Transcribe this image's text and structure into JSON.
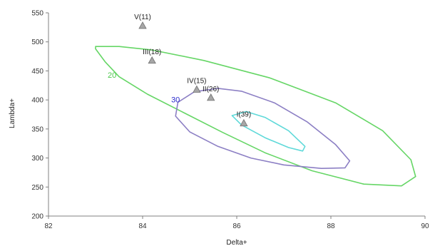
{
  "chart_data": {
    "type": "scatter",
    "xlabel": "Delta+",
    "ylabel": "Lambda+",
    "xlim": [
      82,
      90
    ],
    "ylim": [
      200,
      550
    ],
    "x_ticks": [
      "82",
      "84",
      "86",
      "88",
      "90"
    ],
    "y_ticks": [
      "200",
      "250",
      "300",
      "350",
      "400",
      "450",
      "500",
      "550"
    ],
    "grid": false,
    "points": [
      {
        "label": "V(11)",
        "x": 84.0,
        "y": 528,
        "color": "#a6a6a6"
      },
      {
        "label": "III(18)",
        "x": 84.2,
        "y": 468,
        "color": "#a6a6a6"
      },
      {
        "label": "IV(15)",
        "x": 85.15,
        "y": 418,
        "color": "#a6a6a6"
      },
      {
        "label": "II(26)",
        "x": 85.45,
        "y": 404,
        "color": "#a6a6a6"
      },
      {
        "label": "I(39)",
        "x": 86.15,
        "y": 360,
        "color": "#a6a6a6"
      }
    ],
    "contours": [
      {
        "label": "20",
        "color": "#66d666",
        "label_x": 83.35,
        "label_y": 443,
        "path": [
          [
            83.0,
            492
          ],
          [
            83.5,
            492
          ],
          [
            84.2,
            486
          ],
          [
            85.3,
            468
          ],
          [
            86.7,
            438
          ],
          [
            88.1,
            395
          ],
          [
            89.1,
            347
          ],
          [
            89.7,
            297
          ],
          [
            89.8,
            268
          ],
          [
            89.5,
            252
          ],
          [
            88.7,
            255
          ],
          [
            87.6,
            278
          ],
          [
            86.6,
            309
          ],
          [
            85.7,
            344
          ],
          [
            84.9,
            377
          ],
          [
            84.1,
            410
          ],
          [
            83.5,
            440
          ],
          [
            83.2,
            466
          ],
          [
            83.0,
            488
          ],
          [
            83.0,
            492
          ]
        ]
      },
      {
        "label": "30",
        "color": "#8c7fc4",
        "label_x": 84.7,
        "label_y": 401,
        "path": [
          [
            84.75,
            396
          ],
          [
            85.1,
            414
          ],
          [
            85.6,
            420
          ],
          [
            86.1,
            415
          ],
          [
            86.8,
            395
          ],
          [
            87.5,
            362
          ],
          [
            88.1,
            323
          ],
          [
            88.4,
            295
          ],
          [
            88.3,
            283
          ],
          [
            87.8,
            282
          ],
          [
            87.0,
            288
          ],
          [
            86.3,
            300
          ],
          [
            85.6,
            320
          ],
          [
            85.0,
            345
          ],
          [
            84.7,
            372
          ],
          [
            84.75,
            396
          ]
        ]
      },
      {
        "label": "",
        "color": "#5fd9d9",
        "path": [
          [
            85.9,
            373
          ],
          [
            86.2,
            380
          ],
          [
            86.6,
            370
          ],
          [
            87.1,
            347
          ],
          [
            87.45,
            320
          ],
          [
            87.4,
            312
          ],
          [
            87.1,
            318
          ],
          [
            86.6,
            335
          ],
          [
            86.1,
            357
          ],
          [
            85.9,
            373
          ]
        ]
      }
    ]
  }
}
